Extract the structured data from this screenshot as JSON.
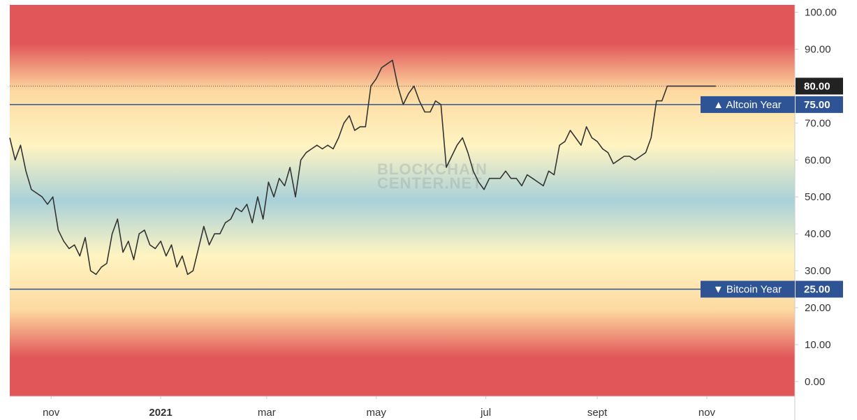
{
  "watermark": {
    "line1": "BLOCKCHAIN",
    "line2": "CENTER.NET"
  },
  "colors": {
    "band_red": "#e15759",
    "band_orange": "#fdd9a0",
    "band_cream": "#fff4c2",
    "band_green": "#d8ecc8",
    "band_blue": "#a9d1d9",
    "series_line": "#333333",
    "threshold_line": "#2f5496",
    "badge_fill": "#2f5496",
    "current_badge_fill": "#222222"
  },
  "chart_data": {
    "type": "line",
    "title": "",
    "xlabel": "",
    "ylabel": "",
    "ylim": [
      -4,
      102
    ],
    "yticks": [
      0,
      10,
      20,
      30,
      40,
      50,
      60,
      70,
      80,
      90,
      100
    ],
    "ytick_labels": [
      "0.00",
      "10.00",
      "20.00",
      "30.00",
      "40.00",
      "50.00",
      "60.00",
      "70.00",
      "80.00",
      "90.00",
      "100.00"
    ],
    "xlim": [
      "2020-10-09",
      "2021-12-20"
    ],
    "xticks": [
      {
        "date": "2020-11-01",
        "label": "nov",
        "bold": false
      },
      {
        "date": "2021-01-01",
        "label": "2021",
        "bold": true
      },
      {
        "date": "2021-03-01",
        "label": "mar",
        "bold": false
      },
      {
        "date": "2021-05-01",
        "label": "may",
        "bold": false
      },
      {
        "date": "2021-07-01",
        "label": "jul",
        "bold": false
      },
      {
        "date": "2021-09-01",
        "label": "sept",
        "bold": false
      },
      {
        "date": "2021-11-01",
        "label": "nov",
        "bold": false
      }
    ],
    "grid": false,
    "legend": "none",
    "thresholds": [
      {
        "value": 75,
        "label": "▲ Altcoin Year",
        "value_label": "75.00"
      },
      {
        "value": 25,
        "label": "▼ Bitcoin Year",
        "value_label": "25.00"
      }
    ],
    "current": {
      "value": 80,
      "label": "80.00"
    },
    "series": [
      {
        "x": [
          "2020-10-09",
          "2020-10-12",
          "2020-10-15",
          "2020-10-18",
          "2020-10-21",
          "2020-10-24",
          "2020-10-27",
          "2020-10-30",
          "2020-11-02",
          "2020-11-05",
          "2020-11-08",
          "2020-11-11",
          "2020-11-14",
          "2020-11-17",
          "2020-11-20",
          "2020-11-23",
          "2020-11-26",
          "2020-11-29",
          "2020-12-02",
          "2020-12-05",
          "2020-12-08",
          "2020-12-11",
          "2020-12-14",
          "2020-12-17",
          "2020-12-20",
          "2020-12-23",
          "2020-12-26",
          "2020-12-29",
          "2021-01-01",
          "2021-01-04",
          "2021-01-07",
          "2021-01-10",
          "2021-01-13",
          "2021-01-16",
          "2021-01-19",
          "2021-01-22",
          "2021-01-25",
          "2021-01-28",
          "2021-01-31",
          "2021-02-03",
          "2021-02-06",
          "2021-02-09",
          "2021-02-12",
          "2021-02-15",
          "2021-02-18",
          "2021-02-21",
          "2021-02-24",
          "2021-02-27",
          "2021-03-02",
          "2021-03-05",
          "2021-03-08",
          "2021-03-11",
          "2021-03-14",
          "2021-03-17",
          "2021-03-20",
          "2021-03-23",
          "2021-03-26",
          "2021-03-29",
          "2021-04-01",
          "2021-04-04",
          "2021-04-07",
          "2021-04-10",
          "2021-04-13",
          "2021-04-16",
          "2021-04-19",
          "2021-04-22",
          "2021-04-25",
          "2021-04-28",
          "2021-05-01",
          "2021-05-04",
          "2021-05-07",
          "2021-05-10",
          "2021-05-13",
          "2021-05-16",
          "2021-05-19",
          "2021-05-22",
          "2021-05-25",
          "2021-05-28",
          "2021-05-31",
          "2021-06-03",
          "2021-06-06",
          "2021-06-09",
          "2021-06-12",
          "2021-06-15",
          "2021-06-18",
          "2021-06-21",
          "2021-06-24",
          "2021-06-27",
          "2021-06-30",
          "2021-07-03",
          "2021-07-06",
          "2021-07-09",
          "2021-07-12",
          "2021-07-15",
          "2021-07-18",
          "2021-07-21",
          "2021-07-24",
          "2021-07-27",
          "2021-07-30",
          "2021-08-02",
          "2021-08-05",
          "2021-08-08",
          "2021-08-11",
          "2021-08-14",
          "2021-08-17",
          "2021-08-20",
          "2021-08-23",
          "2021-08-26",
          "2021-08-29",
          "2021-09-01",
          "2021-09-04",
          "2021-09-07",
          "2021-09-10",
          "2021-09-13",
          "2021-09-16",
          "2021-09-19",
          "2021-09-22",
          "2021-09-25",
          "2021-09-28",
          "2021-10-01",
          "2021-10-04",
          "2021-10-07",
          "2021-10-10",
          "2021-10-13",
          "2021-10-16",
          "2021-10-19",
          "2021-10-22",
          "2021-10-25",
          "2021-10-28",
          "2021-10-31",
          "2021-11-03",
          "2021-11-06"
        ],
        "y": [
          66,
          60,
          64,
          57,
          52,
          51,
          50,
          48,
          50,
          41,
          38,
          36,
          37,
          34,
          39,
          30,
          29,
          31,
          32,
          40,
          44,
          35,
          38,
          33,
          40,
          41,
          37,
          36,
          38,
          34,
          37,
          31,
          34,
          29,
          30,
          36,
          42,
          37,
          40,
          40,
          43,
          44,
          47,
          46,
          48,
          43,
          50,
          44,
          54,
          50,
          55,
          53,
          58,
          50,
          60,
          62,
          63,
          64,
          63,
          64,
          63,
          66,
          70,
          72,
          68,
          69,
          69,
          80,
          82,
          85,
          86,
          87,
          80,
          75,
          78,
          80,
          76,
          73,
          73,
          76,
          75,
          58,
          61,
          64,
          66,
          62,
          57,
          54,
          52,
          55,
          55,
          55,
          57,
          55,
          55,
          53,
          56,
          55,
          54,
          53,
          57,
          56,
          64,
          65,
          68,
          66,
          64,
          69,
          66,
          65,
          63,
          62,
          59,
          60,
          61,
          61,
          60,
          61,
          62,
          66,
          76,
          76,
          80,
          80,
          80,
          80,
          80,
          80,
          80,
          80,
          80,
          80
        ]
      }
    ]
  }
}
